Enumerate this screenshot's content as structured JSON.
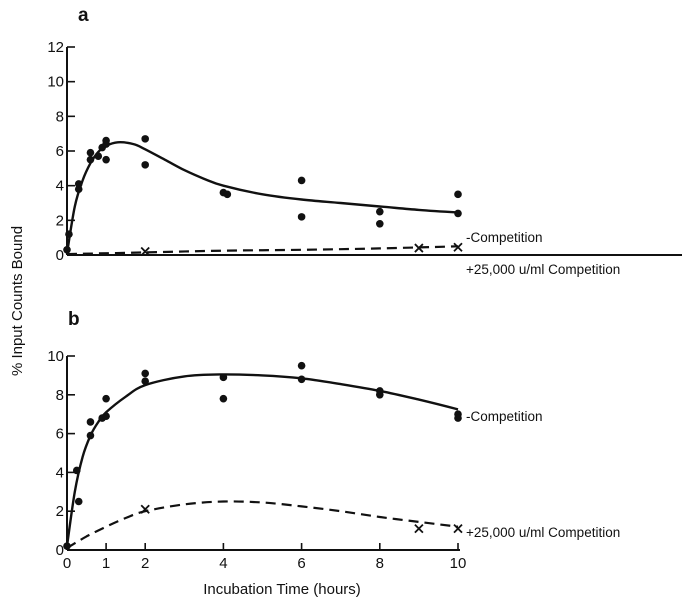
{
  "chart_data": {
    "type": "scatter",
    "shared_xlabel": "Incubation Time (hours)",
    "shared_ylabel": "% Input Counts Bound",
    "panels": [
      {
        "letter": "a",
        "xlim": [
          0,
          10
        ],
        "ylim": [
          0,
          12
        ],
        "yticks": [
          0,
          2,
          4,
          6,
          8,
          10,
          12
        ],
        "ytick_labels": [
          "0",
          "2",
          "4",
          "6",
          "8",
          "10",
          "12"
        ],
        "series": [
          {
            "name": "-Competition",
            "marker": "dot",
            "line": "solid",
            "points": [
              [
                0,
                0.3
              ],
              [
                0.05,
                1.2
              ],
              [
                0.3,
                3.8
              ],
              [
                0.3,
                4.1
              ],
              [
                0.6,
                5.5
              ],
              [
                0.6,
                5.9
              ],
              [
                0.8,
                5.7
              ],
              [
                0.9,
                6.2
              ],
              [
                1,
                5.5
              ],
              [
                1,
                6.4
              ],
              [
                1,
                6.6
              ],
              [
                2,
                6.7
              ],
              [
                2,
                5.2
              ],
              [
                4,
                3.6
              ],
              [
                4.1,
                3.5
              ],
              [
                6,
                4.3
              ],
              [
                6,
                2.2
              ],
              [
                8,
                2.5
              ],
              [
                8,
                1.8
              ],
              [
                10,
                3.5
              ],
              [
                10,
                2.4
              ]
            ],
            "curve": [
              [
                0,
                0.1
              ],
              [
                0.2,
                2.8
              ],
              [
                0.4,
                4.3
              ],
              [
                0.6,
                5.3
              ],
              [
                0.8,
                5.95
              ],
              [
                1,
                6.3
              ],
              [
                1.3,
                6.5
              ],
              [
                1.7,
                6.4
              ],
              [
                2,
                6.1
              ],
              [
                2.5,
                5.5
              ],
              [
                3,
                4.9
              ],
              [
                3.5,
                4.4
              ],
              [
                4,
                4.0
              ],
              [
                5,
                3.5
              ],
              [
                6,
                3.2
              ],
              [
                7,
                3.0
              ],
              [
                8,
                2.8
              ],
              [
                9,
                2.6
              ],
              [
                10,
                2.45
              ]
            ]
          },
          {
            "name": "+25,000 u/ml Competition",
            "marker": "cross",
            "line": "dashed",
            "points": [
              [
                2,
                0.2
              ],
              [
                9,
                0.4
              ],
              [
                10,
                0.45
              ]
            ],
            "curve": [
              [
                0,
                0.05
              ],
              [
                2,
                0.15
              ],
              [
                4,
                0.25
              ],
              [
                6,
                0.3
              ],
              [
                8,
                0.38
              ],
              [
                10,
                0.5
              ]
            ]
          }
        ]
      },
      {
        "letter": "b",
        "xlim": [
          0,
          10
        ],
        "ylim": [
          0,
          10
        ],
        "xticks": [
          0,
          1,
          2,
          4,
          6,
          8,
          10
        ],
        "xtick_labels": [
          "0",
          "1",
          "2",
          "4",
          "6",
          "8",
          "10"
        ],
        "yticks": [
          0,
          2,
          4,
          6,
          8,
          10
        ],
        "ytick_labels": [
          "0",
          "2",
          "4",
          "6",
          "8",
          "10"
        ],
        "series": [
          {
            "name": "-Competition",
            "marker": "dot",
            "line": "solid",
            "points": [
              [
                0,
                0.2
              ],
              [
                0.25,
                4.1
              ],
              [
                0.3,
                2.5
              ],
              [
                0.6,
                5.9
              ],
              [
                0.6,
                6.6
              ],
              [
                0.9,
                6.8
              ],
              [
                1,
                7.8
              ],
              [
                1,
                6.9
              ],
              [
                2,
                9.1
              ],
              [
                2,
                8.7
              ],
              [
                4,
                8.9
              ],
              [
                4,
                7.8
              ],
              [
                6,
                9.5
              ],
              [
                6,
                8.8
              ],
              [
                8,
                8.2
              ],
              [
                8,
                8.0
              ],
              [
                10,
                7.0
              ],
              [
                10,
                6.8
              ]
            ],
            "curve": [
              [
                0,
                0.2
              ],
              [
                0.2,
                3.0
              ],
              [
                0.4,
                4.8
              ],
              [
                0.6,
                5.9
              ],
              [
                0.8,
                6.6
              ],
              [
                1,
                7.1
              ],
              [
                1.5,
                7.9
              ],
              [
                2,
                8.5
              ],
              [
                3,
                8.95
              ],
              [
                4,
                9.05
              ],
              [
                5,
                9.0
              ],
              [
                6,
                8.85
              ],
              [
                7,
                8.55
              ],
              [
                8,
                8.2
              ],
              [
                9,
                7.75
              ],
              [
                10,
                7.25
              ]
            ]
          },
          {
            "name": "+25,000 u/ml Competition",
            "marker": "cross",
            "line": "dashed",
            "points": [
              [
                2,
                2.1
              ],
              [
                9,
                1.1
              ],
              [
                10,
                1.1
              ]
            ],
            "curve": [
              [
                0,
                0.1
              ],
              [
                0.5,
                0.7
              ],
              [
                1,
                1.2
              ],
              [
                1.5,
                1.65
              ],
              [
                2,
                2.0
              ],
              [
                3,
                2.35
              ],
              [
                4,
                2.5
              ],
              [
                5,
                2.45
              ],
              [
                6,
                2.25
              ],
              [
                7,
                2.0
              ],
              [
                8,
                1.7
              ],
              [
                9,
                1.45
              ],
              [
                10,
                1.2
              ]
            ]
          }
        ]
      }
    ]
  }
}
